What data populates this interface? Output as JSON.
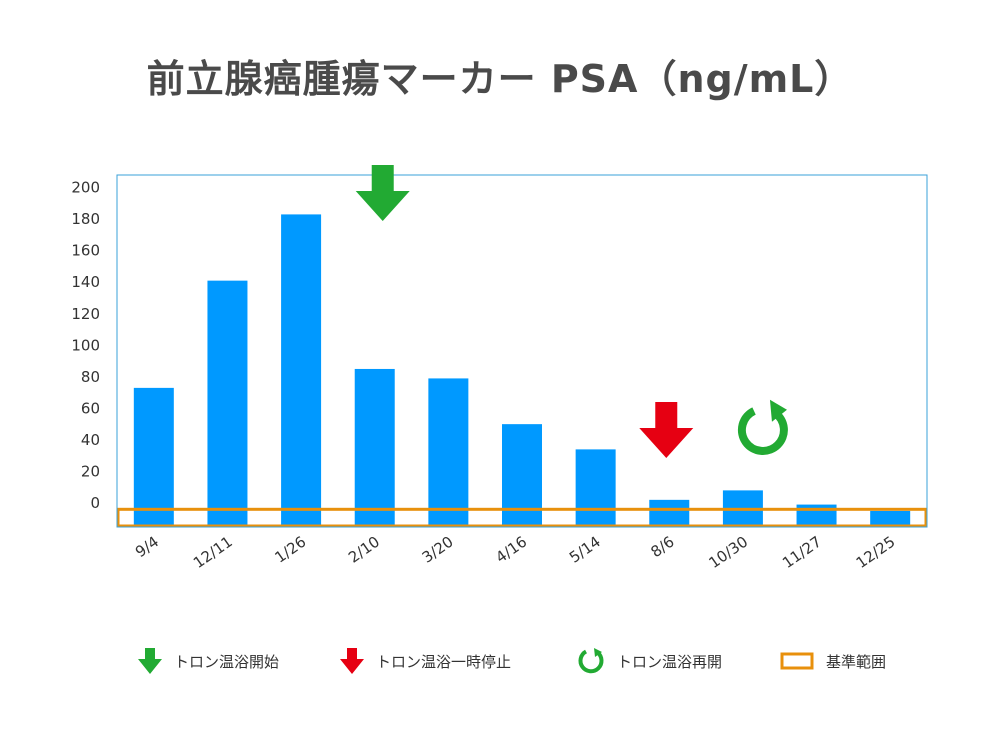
{
  "chart_data": {
    "type": "bar",
    "title": "前立腺癌腫瘍マーカー PSA（ng/mL）",
    "xlabel": "",
    "ylabel": "",
    "ylim": [
      -15,
      205
    ],
    "yticks": [
      0,
      20,
      40,
      60,
      80,
      100,
      120,
      140,
      160,
      180,
      200
    ],
    "categories": [
      "9/4",
      "12/11",
      "1/26",
      "2/10",
      "3/20",
      "4/16",
      "5/14",
      "8/6",
      "10/30",
      "11/27",
      "12/25"
    ],
    "values": [
      73,
      141,
      183,
      85,
      79,
      50,
      34,
      2,
      8,
      -1,
      -5
    ],
    "bar_color": "#0099ff",
    "plot_border_color": "#3aa0d8",
    "reference_range": {
      "label": "基準範囲",
      "from": -15,
      "to": -4,
      "color": "#e8900c"
    },
    "annotations": [
      {
        "category": "2/10",
        "label": "トロン温浴開始",
        "icon": "green-down-arrow-icon",
        "color": "#22aa33"
      },
      {
        "category": "8/6",
        "label": "トロン温浴一時停止",
        "icon": "red-down-arrow-icon",
        "color": "#e60012"
      },
      {
        "category": "10/30",
        "label": "トロン温浴再開",
        "icon": "green-restart-circle-icon",
        "color": "#22aa33"
      }
    ]
  }
}
